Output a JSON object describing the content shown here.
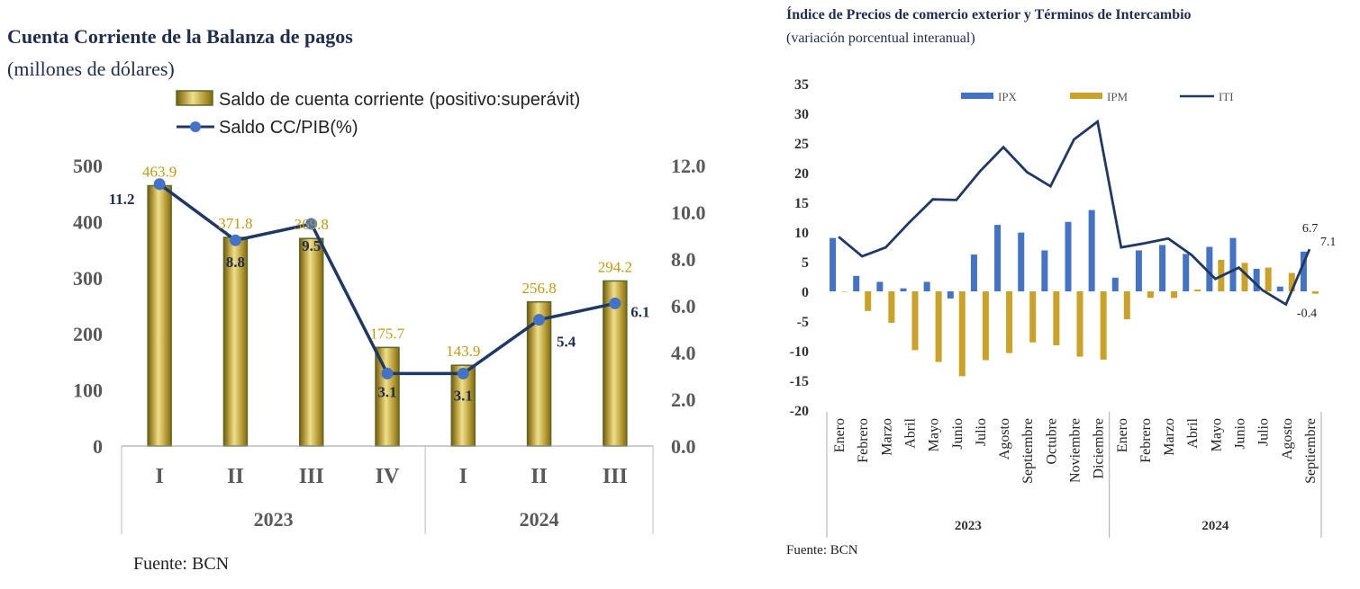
{
  "left_chart": {
    "title": "Cuenta Corriente de la Balanza de pagos",
    "subtitle": "(millones de dólares)",
    "source": "Fuente: BCN",
    "legend": {
      "bars": "Saldo de cuenta corriente (positivo:superávit)",
      "line": "Saldo CC/PIB(%)"
    },
    "colors": {
      "bar": "#b8960c",
      "bar_highlight": "#f0e08a",
      "bar_border": "#556b2f",
      "line": "#1f3864",
      "marker": "#4472c4",
      "bar_label": "#c09a10",
      "line_label": "#1f2d4f",
      "axis_text": "#595959"
    }
  },
  "right_chart": {
    "title": "Índice de Precios de comercio exterior y Términos de Intercambio",
    "subtitle": "(variación porcentual interanual)",
    "source": "Fuente: BCN",
    "colors": {
      "IPX": "#4472c4",
      "IPM": "#c9a227",
      "ITI": "#1f3864"
    }
  },
  "chart_data": [
    {
      "type": "bar",
      "categories": [
        "I",
        "II",
        "III",
        "IV",
        "I",
        "II",
        "III"
      ],
      "groups": [
        {
          "label": "2023",
          "span": 4
        },
        {
          "label": "2024",
          "span": 3
        }
      ],
      "series": [
        {
          "name": "Saldo de cuenta corriente (positivo:superávit)",
          "type": "bar",
          "axis": "left",
          "values": [
            463.9,
            371.8,
            369.8,
            175.7,
            143.9,
            256.8,
            294.2
          ],
          "labels": [
            "463.9",
            "371.8",
            "369.8",
            "175.7",
            "143.9",
            "256.8",
            "294.2"
          ]
        },
        {
          "name": "Saldo CC/PIB(%)",
          "type": "line",
          "axis": "right",
          "values": [
            11.2,
            8.8,
            9.5,
            3.1,
            3.1,
            5.4,
            6.1
          ],
          "labels": [
            "11.2",
            "8.8",
            "9.5",
            "3.1",
            "3.1",
            "5.4",
            "6.1"
          ]
        }
      ],
      "y_left": {
        "ylim": [
          0,
          500
        ],
        "ticks": [
          "0",
          "100",
          "200",
          "300",
          "400",
          "500"
        ]
      },
      "y_right": {
        "ylim": [
          0,
          12
        ],
        "ticks": [
          "0.0",
          "2.0",
          "4.0",
          "6.0",
          "8.0",
          "10.0",
          "12.0"
        ]
      },
      "legend_position": "top",
      "grid": false
    },
    {
      "type": "bar",
      "categories": [
        "Enero",
        "Febrero",
        "Marzo",
        "Abril",
        "Mayo",
        "Junio",
        "Julio",
        "Agosto",
        "Septiembre",
        "Octubre",
        "Noviembre",
        "Diciembre",
        "Enero",
        "Febrero",
        "Marzo",
        "Abril",
        "Mayo",
        "Junio",
        "Julio",
        "Agosto",
        "Septiembre"
      ],
      "groups": [
        {
          "label": "2023",
          "span": 12
        },
        {
          "label": "2024",
          "span": 9
        }
      ],
      "series": [
        {
          "name": "IPX",
          "type": "bar",
          "values": [
            9.0,
            2.6,
            1.6,
            0.5,
            1.6,
            -1.2,
            6.2,
            11.2,
            9.9,
            6.9,
            11.7,
            13.7,
            2.3,
            6.9,
            7.8,
            6.3,
            7.5,
            9.0,
            3.8,
            0.8,
            6.7
          ]
        },
        {
          "name": "IPM",
          "type": "bar",
          "values": [
            0,
            -3.3,
            -5.3,
            -9.9,
            -11.9,
            -14.3,
            -11.6,
            -10.4,
            -8.6,
            -9.1,
            -11.0,
            -11.5,
            -4.7,
            -1.1,
            -1.1,
            0.3,
            5.3,
            4.8,
            4.0,
            3.1,
            -0.4
          ]
        },
        {
          "name": "ITI",
          "type": "line",
          "values": [
            9.2,
            5.9,
            7.4,
            11.6,
            15.5,
            15.4,
            20.2,
            24.3,
            20.1,
            17.7,
            25.6,
            28.6,
            7.4,
            8.1,
            8.9,
            6.1,
            2.1,
            4.0,
            0.2,
            -2.2,
            7.1
          ]
        }
      ],
      "annotations": [
        "6.7",
        "7.1",
        "-0.4"
      ],
      "ylim": [
        -20,
        35
      ],
      "yticks": [
        "35",
        "30",
        "25",
        "20",
        "15",
        "10",
        "5",
        "0",
        "-5",
        "-10",
        "-15",
        "-20"
      ],
      "legend_position": "top",
      "grid": false
    }
  ]
}
